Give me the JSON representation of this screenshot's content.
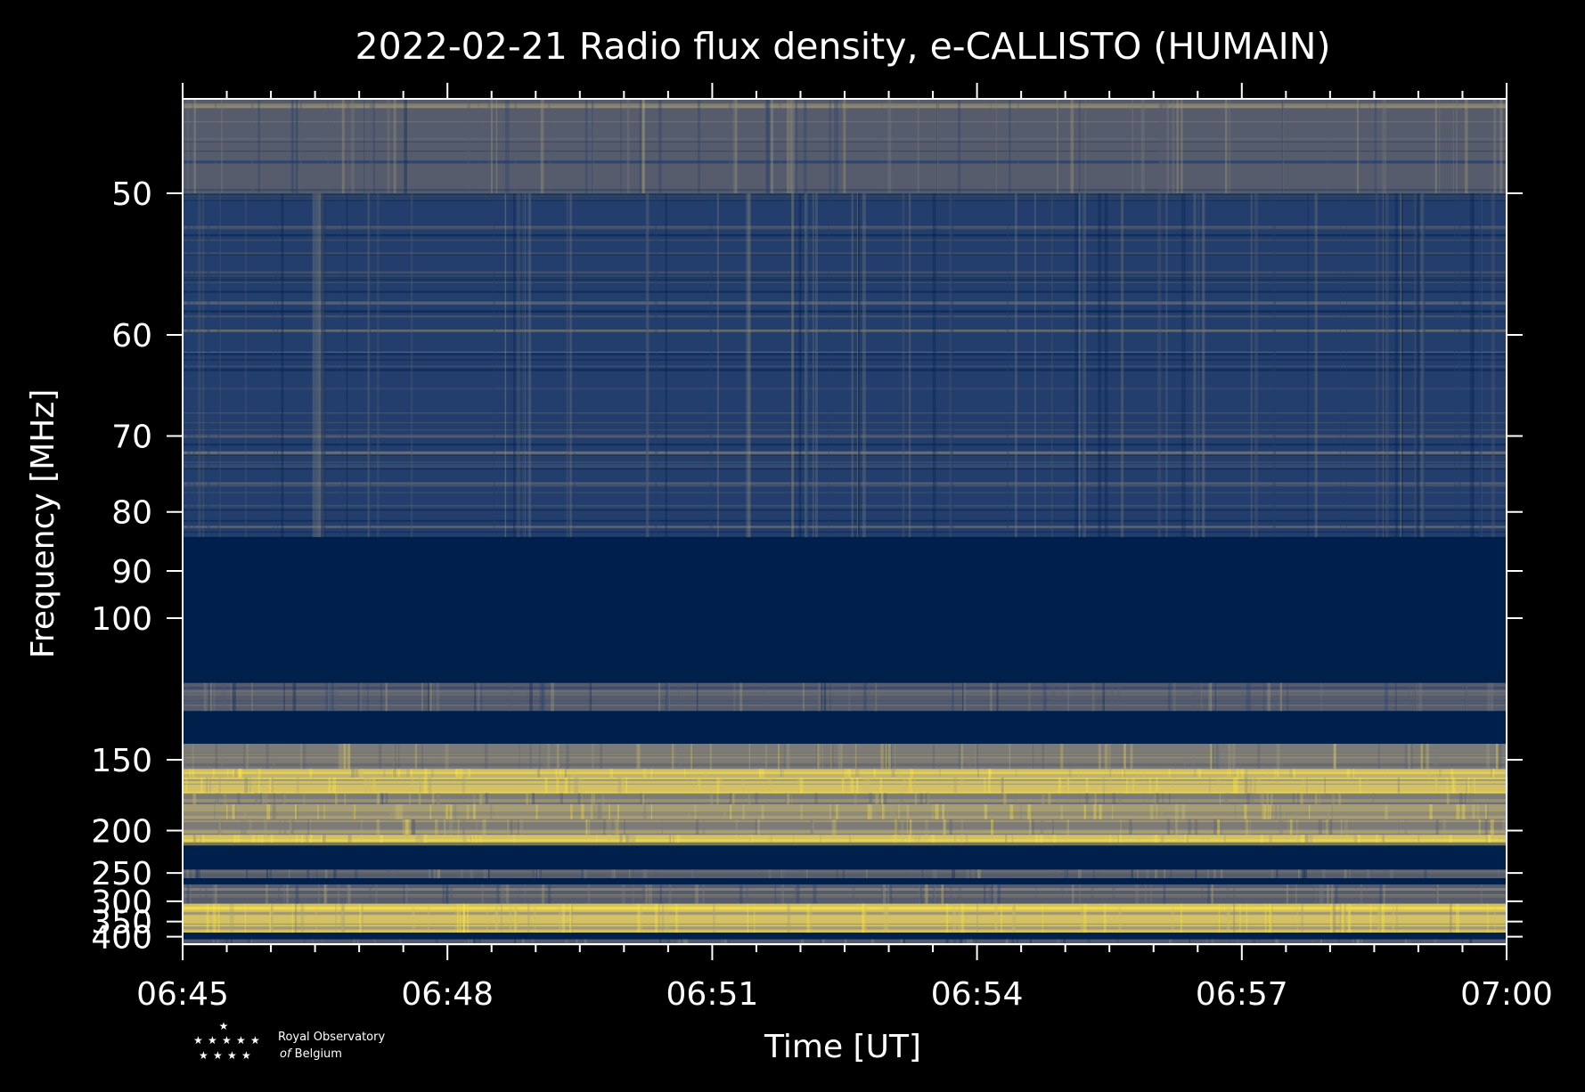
{
  "chart_data": {
    "type": "heatmap",
    "title": "2022-02-21 Radio flux density, e-CALLISTO (HUMAIN)",
    "xlabel": "Time [UT]",
    "ylabel": "Frequency [MHz]",
    "x_ticks": [
      "06:45",
      "06:48",
      "06:51",
      "06:54",
      "06:57",
      "07:00"
    ],
    "x_range": [
      "06:45",
      "07:00"
    ],
    "y_ticks": [
      50,
      60,
      70,
      80,
      90,
      100,
      150,
      200,
      250,
      300,
      350,
      400
    ],
    "y_scale": "reciprocal",
    "y_range": [
      45,
      430
    ],
    "colormap": [
      "#00204c",
      "#233e6c",
      "#575c6d",
      "#7c7b78",
      "#a69d75",
      "#d3c164",
      "#fee838"
    ],
    "bands": [
      {
        "from": 45,
        "to": 50,
        "level": 0.35
      },
      {
        "from": 50,
        "to": 84,
        "level": 0.22
      },
      {
        "from": 84,
        "to": 118,
        "level": 0.0
      },
      {
        "from": 118,
        "to": 128,
        "level": 0.28
      },
      {
        "from": 128,
        "to": 142,
        "level": 0.0
      },
      {
        "from": 142,
        "to": 155,
        "level": 0.55
      },
      {
        "from": 155,
        "to": 160,
        "level": 0.85
      },
      {
        "from": 160,
        "to": 170,
        "level": 0.75
      },
      {
        "from": 170,
        "to": 178,
        "level": 0.5
      },
      {
        "from": 178,
        "to": 190,
        "level": 0.7
      },
      {
        "from": 190,
        "to": 204,
        "level": 0.55
      },
      {
        "from": 204,
        "to": 212,
        "level": 0.8
      },
      {
        "from": 212,
        "to": 245,
        "level": 0.0
      },
      {
        "from": 245,
        "to": 258,
        "level": 0.3
      },
      {
        "from": 258,
        "to": 268,
        "level": 0.0
      },
      {
        "from": 268,
        "to": 305,
        "level": 0.38
      },
      {
        "from": 305,
        "to": 385,
        "level": 0.8
      },
      {
        "from": 385,
        "to": 410,
        "level": 0.0
      },
      {
        "from": 410,
        "to": 430,
        "level": 0.3
      }
    ],
    "grid": false,
    "colors": {
      "background": "#000000",
      "axes": "#ffffff",
      "low": "#00204c",
      "high": "#fee838"
    }
  },
  "logo": {
    "line1": "Royal Observatory",
    "line2_prefix": "of",
    "line2_rest": " Belgium"
  }
}
